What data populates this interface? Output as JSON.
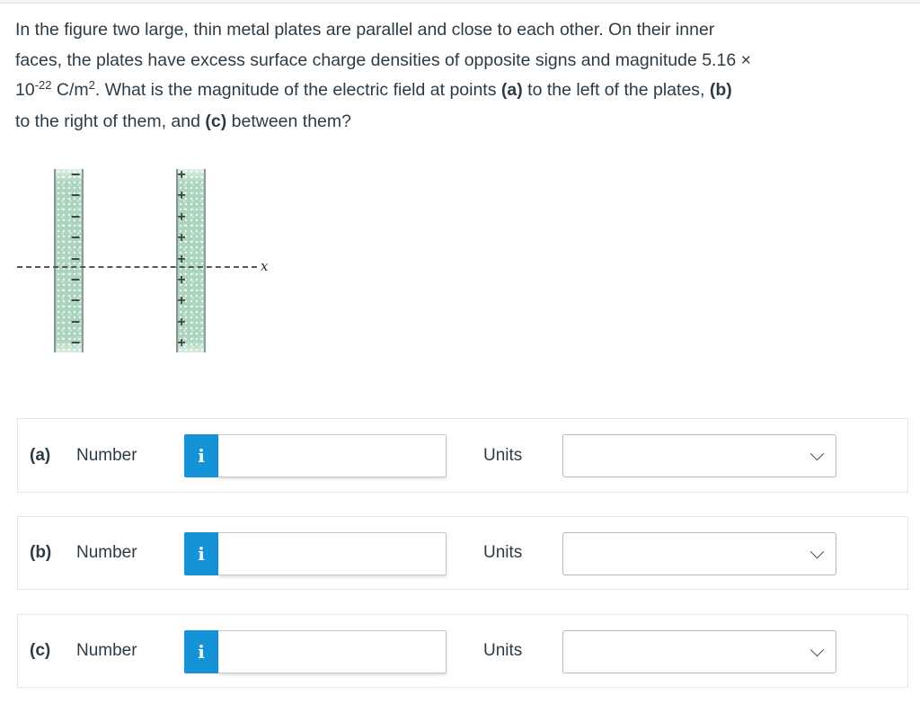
{
  "colors": {
    "accent": "#1593d8",
    "text": "#2d3b45",
    "plate": "#aad4be",
    "row_border": "#e5e5e5"
  },
  "question": {
    "segments": [
      {
        "t": "In the figure two large, thin metal plates are parallel and close to each other. On their inner"
      },
      {
        "br": true
      },
      {
        "t": "faces, the plates have excess surface charge densities of opposite signs and magnitude 5.16 ×"
      },
      {
        "br": true
      },
      {
        "t": "10"
      },
      {
        "t": "-22",
        "sup": true
      },
      {
        "t": " C/m"
      },
      {
        "t": "2",
        "sup": true
      },
      {
        "t": ". What is the magnitude of the electric field at points "
      },
      {
        "t": "(a)",
        "b": true
      },
      {
        "t": " to the left of the plates, "
      },
      {
        "t": "(b)",
        "b": true
      },
      {
        "br": true
      },
      {
        "t": "to the right of them, and "
      },
      {
        "t": "(c)",
        "b": true
      },
      {
        "t": " between them?"
      }
    ]
  },
  "figure": {
    "axis_label": "x",
    "minus_sign": "−",
    "plus_sign": "+",
    "minus_count": 9,
    "plus_count": 9
  },
  "answers": [
    {
      "label": "(a)",
      "number_label": "Number",
      "info_label": "i",
      "number_value": "",
      "number_placeholder": "",
      "units_label": "Units",
      "units_value": ""
    },
    {
      "label": "(b)",
      "number_label": "Number",
      "info_label": "i",
      "number_value": "",
      "number_placeholder": "",
      "units_label": "Units",
      "units_value": ""
    },
    {
      "label": "(c)",
      "number_label": "Number",
      "info_label": "i",
      "number_value": "",
      "number_placeholder": "",
      "units_label": "Units",
      "units_value": ""
    }
  ]
}
